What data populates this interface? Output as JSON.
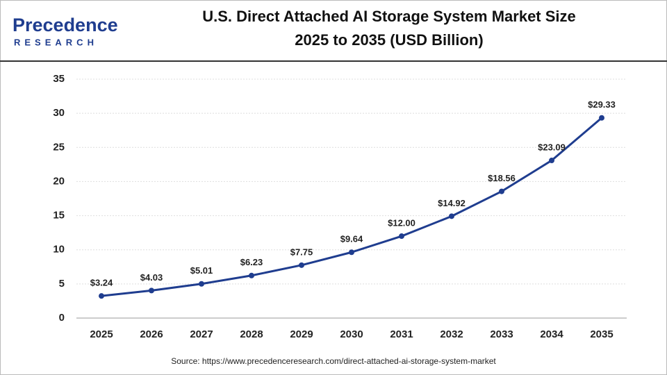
{
  "logo": {
    "name": "Precedence",
    "sub": "RESEARCH"
  },
  "chart_data": {
    "type": "line",
    "title": "U.S. Direct Attached AI Storage System Market Size",
    "subtitle": "2025 to 2035 (USD Billion)",
    "categories": [
      "2025",
      "2026",
      "2027",
      "2028",
      "2029",
      "2030",
      "2031",
      "2032",
      "2033",
      "2034",
      "2035"
    ],
    "values": [
      3.24,
      4.03,
      5.01,
      6.23,
      7.75,
      9.64,
      12.0,
      14.92,
      18.56,
      23.09,
      29.33
    ],
    "value_labels": [
      "$3.24",
      "$4.03",
      "$5.01",
      "$6.23",
      "$7.75",
      "$9.64",
      "$12.00",
      "$14.92",
      "$18.56",
      "$23.09",
      "$29.33"
    ],
    "color": "#1f3d8f",
    "ylim": [
      0,
      35
    ],
    "yticks": [
      0,
      5,
      10,
      15,
      20,
      25,
      30,
      35
    ],
    "grid": true,
    "source": "Source: https://www.precedenceresearch.com/direct-attached-ai-storage-system-market"
  }
}
